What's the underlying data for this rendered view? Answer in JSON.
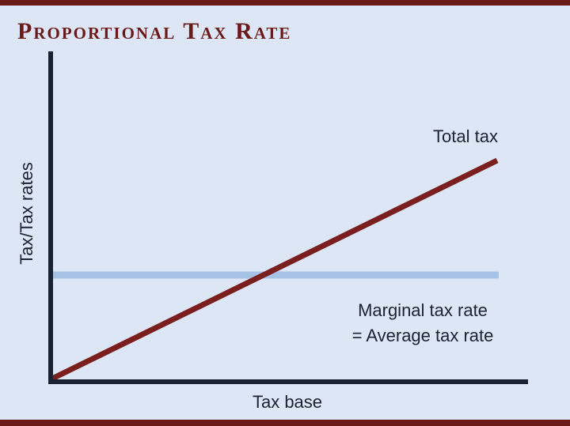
{
  "title": "Proportional Tax Rate",
  "axes": {
    "y_label": "Tax/Tax rates",
    "x_label": "Tax base"
  },
  "curves": [
    {
      "label_lines": [
        "Total tax"
      ]
    },
    {
      "label_lines": [
        "Marginal tax rate",
        "= Average tax rate"
      ]
    }
  ]
}
